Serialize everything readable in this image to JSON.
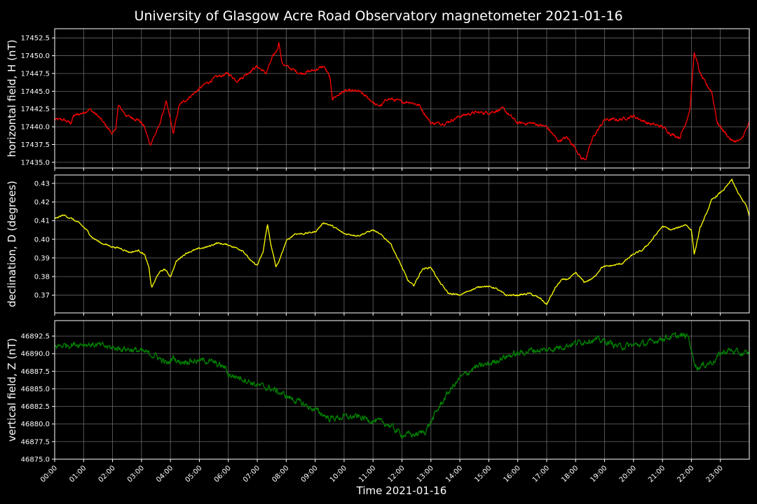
{
  "chart_data": {
    "title": "University of Glasgow Acre Road Observatory magnetometer 2021-01-16",
    "xlabel": "Time 2021-01-16",
    "x_ticks": [
      "00:00",
      "01:00",
      "02:00",
      "03:00",
      "04:00",
      "05:00",
      "06:00",
      "07:00",
      "08:00",
      "09:00",
      "10:00",
      "11:00",
      "12:00",
      "13:00",
      "14:00",
      "15:00",
      "16:00",
      "17:00",
      "18:00",
      "19:00",
      "20:00",
      "21:00",
      "22:00",
      "23:00"
    ],
    "xlim": [
      0,
      24
    ],
    "grid": true,
    "panels": [
      {
        "type": "line",
        "ylabel": "horizontal field, H (nT)",
        "ylim": [
          17434.2,
          17453.8
        ],
        "y_ticks": [
          "17435.0",
          "17437.5",
          "17440.0",
          "17442.5",
          "17445.0",
          "17447.5",
          "17450.0",
          "17452.5"
        ],
        "color": "#ff0000",
        "noise": 0.35,
        "x": [
          0,
          0.3,
          0.55,
          0.65,
          1.0,
          1.2,
          1.5,
          1.8,
          2.0,
          2.1,
          2.2,
          2.5,
          2.9,
          3.1,
          3.25,
          3.3,
          3.6,
          3.85,
          4.0,
          4.1,
          4.3,
          4.6,
          4.9,
          5.2,
          5.6,
          6.0,
          6.3,
          6.5,
          6.8,
          7.0,
          7.3,
          7.5,
          7.7,
          7.75,
          7.85,
          8.0,
          8.5,
          9.0,
          9.3,
          9.5,
          9.6,
          10.0,
          10.5,
          11.0,
          11.1,
          11.3,
          11.5,
          12.0,
          12.3,
          12.6,
          13.0,
          13.5,
          14.0,
          14.5,
          15.0,
          15.5,
          16.0,
          16.5,
          17.0,
          17.4,
          17.7,
          18.0,
          18.2,
          18.35,
          18.6,
          19.0,
          19.5,
          20.0,
          20.5,
          21.0,
          21.3,
          21.6,
          21.8,
          21.95,
          22.1,
          22.3,
          22.5,
          22.7,
          22.9,
          23.1,
          23.4,
          23.7,
          24.0
        ],
        "values": [
          17441,
          17441,
          17440.5,
          17441.5,
          17442,
          17442.5,
          17441.5,
          17440,
          17439,
          17439.5,
          17443,
          17441.5,
          17441,
          17440,
          17438,
          17437.5,
          17440,
          17443.5,
          17441,
          17439,
          17443,
          17444,
          17445,
          17446,
          17447,
          17447.5,
          17446.5,
          17447,
          17448,
          17448.5,
          17447.5,
          17449.5,
          17451,
          17452,
          17449,
          17448.5,
          17447.5,
          17448,
          17448.5,
          17447,
          17444,
          17445,
          17445,
          17443.5,
          17443,
          17443,
          17444,
          17443.5,
          17443.5,
          17443,
          17440.5,
          17440.5,
          17441.5,
          17442,
          17442,
          17442.5,
          17440.5,
          17440.5,
          17440,
          17438,
          17438.5,
          17437,
          17435.5,
          17435.5,
          17438.5,
          17441,
          17441,
          17441.5,
          17440.5,
          17440,
          17439,
          17438.5,
          17440.5,
          17442.5,
          17450.5,
          17447.5,
          17446,
          17445,
          17440.5,
          17439.5,
          17438,
          17438,
          17440.5
        ]
      },
      {
        "type": "line",
        "ylabel": "declination, D (degrees)",
        "ylim": [
          0.3605,
          0.4345
        ],
        "y_ticks": [
          "0.37",
          "0.38",
          "0.39",
          "0.40",
          "0.41",
          "0.42",
          "0.43"
        ],
        "color": "#ffff00",
        "noise": 0.0007,
        "x": [
          0,
          0.3,
          0.6,
          0.9,
          1.1,
          1.3,
          1.6,
          2.0,
          2.3,
          2.6,
          2.9,
          3.1,
          3.25,
          3.35,
          3.6,
          3.8,
          4.0,
          4.2,
          4.4,
          4.6,
          5.0,
          5.3,
          5.6,
          6.0,
          6.5,
          6.8,
          7.0,
          7.2,
          7.35,
          7.5,
          7.65,
          7.8,
          8.0,
          8.3,
          8.6,
          9.0,
          9.3,
          9.6,
          10.0,
          10.5,
          11.0,
          11.3,
          11.6,
          12.0,
          12.2,
          12.4,
          12.7,
          13.0,
          13.3,
          13.6,
          14.0,
          14.4,
          14.8,
          15.2,
          15.6,
          16.0,
          16.4,
          16.8,
          17.0,
          17.3,
          17.5,
          17.8,
          18.0,
          18.3,
          18.6,
          18.9,
          19.3,
          19.6,
          20.0,
          20.3,
          20.6,
          20.8,
          21.0,
          21.3,
          21.5,
          21.8,
          22.0,
          22.1,
          22.3,
          22.5,
          22.7,
          23.0,
          23.2,
          23.4,
          23.6,
          23.9,
          24.0
        ],
        "values": [
          0.411,
          0.413,
          0.411,
          0.408,
          0.405,
          0.401,
          0.398,
          0.396,
          0.395,
          0.393,
          0.394,
          0.392,
          0.385,
          0.374,
          0.382,
          0.384,
          0.38,
          0.388,
          0.391,
          0.393,
          0.395,
          0.396,
          0.398,
          0.397,
          0.394,
          0.388,
          0.386,
          0.393,
          0.408,
          0.395,
          0.385,
          0.39,
          0.399,
          0.403,
          0.403,
          0.404,
          0.409,
          0.407,
          0.403,
          0.402,
          0.405,
          0.402,
          0.398,
          0.385,
          0.378,
          0.375,
          0.384,
          0.385,
          0.377,
          0.371,
          0.37,
          0.373,
          0.375,
          0.374,
          0.37,
          0.37,
          0.371,
          0.368,
          0.365,
          0.374,
          0.378,
          0.379,
          0.382,
          0.377,
          0.379,
          0.385,
          0.386,
          0.387,
          0.392,
          0.394,
          0.399,
          0.403,
          0.407,
          0.405,
          0.406,
          0.408,
          0.405,
          0.392,
          0.406,
          0.413,
          0.421,
          0.425,
          0.428,
          0.432,
          0.425,
          0.418,
          0.412
        ]
      },
      {
        "type": "line",
        "ylabel": "vertical field, Z (nT)",
        "ylim": [
          46875,
          46894.7
        ],
        "y_ticks": [
          "46875.0",
          "46877.5",
          "46880.0",
          "46882.5",
          "46885.0",
          "46887.5",
          "46890.0",
          "46892.5"
        ],
        "color": "#008000",
        "noise": 0.7,
        "x": [
          0,
          0.5,
          1.0,
          1.5,
          2.0,
          2.5,
          3.0,
          3.5,
          3.9,
          4.1,
          4.3,
          4.6,
          5.0,
          5.3,
          5.6,
          5.9,
          6.0,
          6.5,
          7.0,
          7.5,
          8.0,
          8.5,
          9.0,
          9.5,
          10.0,
          10.5,
          11.0,
          11.5,
          12.0,
          12.5,
          12.8,
          13.0,
          13.3,
          13.6,
          14.0,
          14.5,
          15.0,
          15.5,
          16.0,
          16.5,
          17.0,
          17.5,
          18.0,
          18.5,
          19.0,
          19.5,
          20.0,
          20.5,
          21.0,
          21.5,
          21.9,
          22.05,
          22.2,
          22.5,
          22.8,
          23.0,
          23.3,
          23.7,
          24.0
        ],
        "values": [
          46891,
          46891.3,
          46891.4,
          46891.2,
          46890.8,
          46890.7,
          46890.3,
          46889.7,
          46888.5,
          46889.5,
          46888.8,
          46889,
          46889,
          46889,
          46888.5,
          46888,
          46887,
          46886.5,
          46885.5,
          46885,
          46884,
          46883,
          46882,
          46880.8,
          46881,
          46881,
          46880.5,
          46880,
          46878.5,
          46878.5,
          46879,
          46880.3,
          46882.5,
          46884.5,
          46886.5,
          46888,
          46888.5,
          46889.5,
          46890,
          46890.5,
          46890.5,
          46891,
          46891.5,
          46892,
          46891.8,
          46891,
          46891.2,
          46891.5,
          46892.2,
          46892.5,
          46892.5,
          46889.5,
          46888,
          46888.5,
          46889,
          46890,
          46890.5,
          46890,
          46890
        ]
      }
    ]
  }
}
